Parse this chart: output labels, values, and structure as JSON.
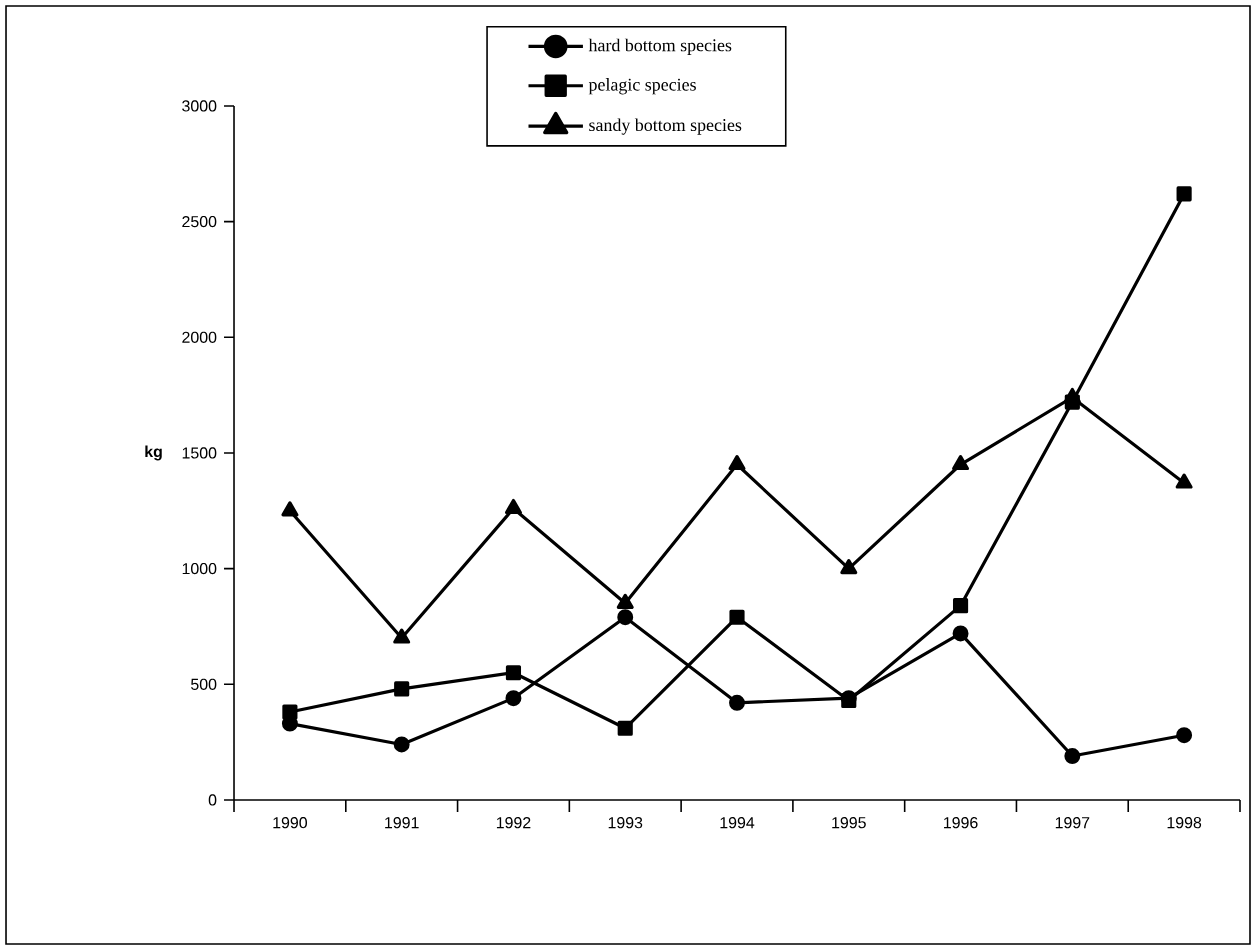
{
  "chart_data": {
    "type": "line",
    "ylabel": "kg",
    "categories": [
      "1990",
      "1991",
      "1992",
      "1993",
      "1994",
      "1995",
      "1996",
      "1997",
      "1998"
    ],
    "series": [
      {
        "name": "hard bottom species",
        "color": "#000000",
        "marker": "circle",
        "values": [
          330,
          240,
          440,
          790,
          420,
          440,
          720,
          190,
          280
        ]
      },
      {
        "name": "pelagic species",
        "color": "#000000",
        "marker": "square",
        "values": [
          380,
          480,
          550,
          310,
          790,
          430,
          840,
          1720,
          2620
        ]
      },
      {
        "name": "sandy bottom species",
        "color": "#000000",
        "marker": "triangle",
        "values": [
          1250,
          700,
          1260,
          850,
          1450,
          1000,
          1450,
          1740,
          1370
        ]
      }
    ],
    "ylim": [
      0,
      3000
    ],
    "yticks": [
      0,
      500,
      1000,
      1500,
      2000,
      2500,
      3000
    ],
    "legend": "top",
    "line_style": "solid"
  }
}
